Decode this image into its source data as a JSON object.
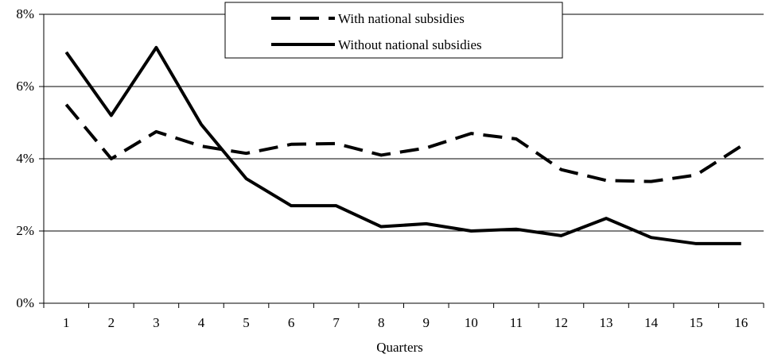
{
  "chart_data": {
    "type": "line",
    "title": "",
    "xlabel": "Quarters",
    "ylabel": "",
    "categories": [
      "1",
      "2",
      "3",
      "4",
      "5",
      "6",
      "7",
      "8",
      "9",
      "10",
      "11",
      "12",
      "13",
      "14",
      "15",
      "16"
    ],
    "y_ticks": [
      "0%",
      "2%",
      "4%",
      "6%",
      "8%"
    ],
    "ylim": [
      0,
      8
    ],
    "grid": "horizontal",
    "legend_position": "top-right",
    "series": [
      {
        "name": "With national subsidies",
        "style": "dashed",
        "color": "#000000",
        "values": [
          5.5,
          4.0,
          4.75,
          4.35,
          4.15,
          4.4,
          4.42,
          4.1,
          4.3,
          4.7,
          4.55,
          3.7,
          3.4,
          3.37,
          3.55,
          4.35
        ]
      },
      {
        "name": "Without national subsidies",
        "style": "solid",
        "color": "#000000",
        "values": [
          6.95,
          5.2,
          7.08,
          4.95,
          3.45,
          2.7,
          2.7,
          2.12,
          2.2,
          2.0,
          2.05,
          1.87,
          2.35,
          1.82,
          1.65,
          1.65
        ]
      }
    ]
  }
}
